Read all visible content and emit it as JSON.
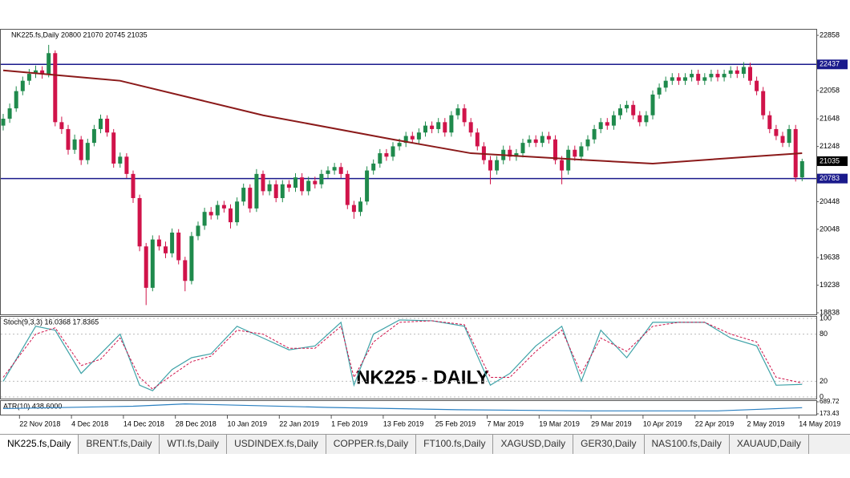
{
  "chart_data": {
    "type": "candlestick",
    "header": "NK225.fs,Daily  20800 21070 20745 21035",
    "overlay_title": "NK225 - DAILY",
    "up_color": "#1f8a4c",
    "down_color": "#d0134a",
    "ma_color": "#8b1a1a",
    "level_color": "#1a1a8c",
    "ylim": [
      18815,
      22940
    ],
    "yticks": [
      22858,
      22058,
      21648,
      21248,
      20448,
      20048,
      19638,
      19238,
      18838
    ],
    "levels": [
      22437,
      20783
    ],
    "current_price": 21035,
    "ohlc": [
      [
        21550,
        21720,
        21480,
        21650
      ],
      [
        21650,
        21870,
        21590,
        21800
      ],
      [
        21800,
        22120,
        21750,
        22050
      ],
      [
        22050,
        22260,
        21990,
        22200
      ],
      [
        22200,
        22370,
        22140,
        22300
      ],
      [
        22300,
        22420,
        22240,
        22350
      ],
      [
        22350,
        22410,
        22230,
        22300
      ],
      [
        22300,
        22720,
        22250,
        22600
      ],
      [
        22600,
        22640,
        21540,
        21600
      ],
      [
        21600,
        21680,
        21430,
        21500
      ],
      [
        21500,
        21560,
        21130,
        21200
      ],
      [
        21200,
        21420,
        21140,
        21350
      ],
      [
        21350,
        21400,
        20980,
        21050
      ],
      [
        21050,
        21360,
        20990,
        21300
      ],
      [
        21300,
        21560,
        21250,
        21500
      ],
      [
        21500,
        21710,
        21440,
        21650
      ],
      [
        21650,
        21700,
        21390,
        21450
      ],
      [
        21450,
        21500,
        20940,
        21000
      ],
      [
        21000,
        21160,
        20940,
        21100
      ],
      [
        21100,
        21150,
        20790,
        20850
      ],
      [
        20850,
        20900,
        20430,
        20500
      ],
      [
        20500,
        20550,
        19730,
        19800
      ],
      [
        19800,
        19850,
        18950,
        19200
      ],
      [
        19200,
        19960,
        19150,
        19900
      ],
      [
        19900,
        19960,
        19740,
        19800
      ],
      [
        19800,
        19870,
        19630,
        19700
      ],
      [
        19700,
        20060,
        19640,
        20000
      ],
      [
        20000,
        20050,
        19540,
        19600
      ],
      [
        19600,
        19650,
        19150,
        19300
      ],
      [
        19300,
        20010,
        19250,
        19950
      ],
      [
        19950,
        20160,
        19890,
        20100
      ],
      [
        20100,
        20360,
        20040,
        20300
      ],
      [
        20300,
        20370,
        20190,
        20250
      ],
      [
        20250,
        20460,
        20190,
        20400
      ],
      [
        20400,
        20460,
        20290,
        20350
      ],
      [
        20350,
        20410,
        20060,
        20150
      ],
      [
        20150,
        20510,
        20100,
        20450
      ],
      [
        20450,
        20710,
        20390,
        20650
      ],
      [
        20650,
        20700,
        20290,
        20350
      ],
      [
        20350,
        20920,
        20300,
        20850
      ],
      [
        20850,
        20900,
        20540,
        20600
      ],
      [
        20600,
        20760,
        20540,
        20700
      ],
      [
        20700,
        20760,
        20440,
        20500
      ],
      [
        20500,
        20760,
        20440,
        20700
      ],
      [
        20700,
        20760,
        20590,
        20650
      ],
      [
        20650,
        20860,
        20590,
        20800
      ],
      [
        20800,
        20860,
        20540,
        20600
      ],
      [
        20600,
        20810,
        20540,
        20750
      ],
      [
        20750,
        20810,
        20640,
        20700
      ],
      [
        20700,
        20910,
        20640,
        20850
      ],
      [
        20850,
        20960,
        20790,
        20900
      ],
      [
        20900,
        21010,
        20840,
        20950
      ],
      [
        20950,
        21010,
        20790,
        20850
      ],
      [
        20850,
        20900,
        20340,
        20400
      ],
      [
        20400,
        20460,
        20200,
        20300
      ],
      [
        20300,
        20510,
        20240,
        20450
      ],
      [
        20450,
        20960,
        20400,
        20900
      ],
      [
        20900,
        21060,
        20840,
        21000
      ],
      [
        21000,
        21210,
        20940,
        21150
      ],
      [
        21150,
        21210,
        21040,
        21100
      ],
      [
        21100,
        21310,
        21040,
        21250
      ],
      [
        21250,
        21360,
        21190,
        21300
      ],
      [
        21300,
        21460,
        21240,
        21400
      ],
      [
        21400,
        21460,
        21290,
        21350
      ],
      [
        21350,
        21510,
        21290,
        21450
      ],
      [
        21450,
        21610,
        21390,
        21550
      ],
      [
        21550,
        21610,
        21440,
        21500
      ],
      [
        21500,
        21660,
        21440,
        21600
      ],
      [
        21600,
        21660,
        21390,
        21450
      ],
      [
        21450,
        21760,
        21390,
        21700
      ],
      [
        21700,
        21860,
        21640,
        21800
      ],
      [
        21800,
        21860,
        21540,
        21600
      ],
      [
        21600,
        21660,
        21390,
        21450
      ],
      [
        21450,
        21510,
        21190,
        21250
      ],
      [
        21250,
        21310,
        20990,
        21050
      ],
      [
        21050,
        21110,
        20700,
        20900
      ],
      [
        20900,
        21110,
        20840,
        21050
      ],
      [
        21050,
        21260,
        20990,
        21200
      ],
      [
        21200,
        21260,
        21040,
        21100
      ],
      [
        21100,
        21210,
        21040,
        21150
      ],
      [
        21150,
        21360,
        21090,
        21300
      ],
      [
        21300,
        21410,
        21240,
        21350
      ],
      [
        21350,
        21410,
        21240,
        21300
      ],
      [
        21300,
        21460,
        21240,
        21400
      ],
      [
        21400,
        21460,
        21290,
        21350
      ],
      [
        21350,
        21410,
        20990,
        21050
      ],
      [
        21050,
        21110,
        20700,
        20900
      ],
      [
        20900,
        21260,
        20840,
        21200
      ],
      [
        21200,
        21260,
        21040,
        21100
      ],
      [
        21100,
        21310,
        21040,
        21250
      ],
      [
        21250,
        21410,
        21190,
        21350
      ],
      [
        21350,
        21560,
        21290,
        21500
      ],
      [
        21500,
        21660,
        21440,
        21600
      ],
      [
        21600,
        21660,
        21490,
        21550
      ],
      [
        21550,
        21760,
        21490,
        21700
      ],
      [
        21700,
        21860,
        21640,
        21800
      ],
      [
        21800,
        21910,
        21740,
        21850
      ],
      [
        21850,
        21910,
        21640,
        21700
      ],
      [
        21700,
        21760,
        21540,
        21600
      ],
      [
        21600,
        21760,
        21540,
        21700
      ],
      [
        21700,
        22060,
        21640,
        22000
      ],
      [
        22000,
        22160,
        21940,
        22100
      ],
      [
        22100,
        22260,
        22040,
        22200
      ],
      [
        22200,
        22310,
        22140,
        22250
      ],
      [
        22250,
        22310,
        22140,
        22200
      ],
      [
        22200,
        22310,
        22140,
        22250
      ],
      [
        22250,
        22360,
        22190,
        22300
      ],
      [
        22300,
        22360,
        22140,
        22200
      ],
      [
        22200,
        22310,
        22140,
        22250
      ],
      [
        22250,
        22360,
        22190,
        22300
      ],
      [
        22300,
        22360,
        22190,
        22250
      ],
      [
        22250,
        22360,
        22190,
        22300
      ],
      [
        22300,
        22410,
        22240,
        22350
      ],
      [
        22350,
        22410,
        22240,
        22300
      ],
      [
        22300,
        22470,
        22240,
        22400
      ],
      [
        22400,
        22460,
        22140,
        22200
      ],
      [
        22200,
        22260,
        21990,
        22050
      ],
      [
        22050,
        22110,
        21640,
        21700
      ],
      [
        21700,
        21760,
        21440,
        21500
      ],
      [
        21500,
        21560,
        21340,
        21400
      ],
      [
        21400,
        21460,
        21240,
        21300
      ],
      [
        21300,
        21560,
        21240,
        21500
      ],
      [
        21500,
        21560,
        20740,
        20800
      ],
      [
        20800,
        21070,
        20745,
        21035
      ]
    ],
    "categories": [
      null,
      null,
      null,
      "22 Nov 2018",
      null,
      null,
      null,
      null,
      null,
      null,
      null,
      "4 Dec 2018",
      null,
      null,
      null,
      null,
      null,
      null,
      null,
      "14 Dec 2018",
      null,
      null,
      null,
      null,
      null,
      null,
      null,
      "28 Dec 2018",
      null,
      null,
      null,
      null,
      null,
      null,
      null,
      "10 Jan 2019",
      null,
      null,
      null,
      null,
      null,
      null,
      null,
      "22 Jan 2019",
      null,
      null,
      null,
      null,
      null,
      null,
      null,
      "1 Feb 2019",
      null,
      null,
      null,
      null,
      null,
      null,
      null,
      "13 Feb 2019",
      null,
      null,
      null,
      null,
      null,
      null,
      null,
      "25 Feb 2019",
      null,
      null,
      null,
      null,
      null,
      null,
      null,
      "7 Mar 2019",
      null,
      null,
      null,
      null,
      null,
      null,
      null,
      "19 Mar 2019",
      null,
      null,
      null,
      null,
      null,
      null,
      null,
      "29 Mar 2019",
      null,
      null,
      null,
      null,
      null,
      null,
      null,
      "10 Apr 2019",
      null,
      null,
      null,
      null,
      null,
      null,
      null,
      "22 Apr 2019",
      null,
      null,
      null,
      null,
      null,
      null,
      null,
      "2 May 2019",
      null,
      null,
      null,
      null,
      null,
      null,
      null,
      "14 May 2019"
    ],
    "ma": {
      "x": [
        0,
        18,
        40,
        60,
        72,
        90,
        100,
        115,
        123
      ],
      "values": [
        22350,
        22200,
        21700,
        21350,
        21150,
        21050,
        21000,
        21100,
        21150
      ]
    },
    "stoch": {
      "label": "Stoch(9,3,3) 16.0368 17.8365",
      "ylim": [
        0,
        100
      ],
      "yticks": [
        0,
        20,
        80,
        100
      ],
      "x": [
        0,
        5,
        8,
        12,
        15,
        18,
        21,
        23,
        26,
        29,
        32,
        36,
        40,
        44,
        48,
        52,
        54,
        57,
        61,
        66,
        71,
        75,
        78,
        82,
        86,
        89,
        92,
        96,
        100,
        104,
        108,
        112,
        116,
        119,
        123
      ],
      "main": [
        20,
        90,
        85,
        30,
        55,
        80,
        15,
        8,
        35,
        50,
        55,
        90,
        75,
        60,
        65,
        95,
        15,
        80,
        98,
        97,
        90,
        15,
        30,
        65,
        90,
        20,
        85,
        50,
        95,
        95,
        95,
        75,
        65,
        15,
        16.0368
      ],
      "signal": [
        25,
        80,
        88,
        40,
        48,
        75,
        25,
        10,
        28,
        45,
        52,
        85,
        80,
        62,
        62,
        90,
        25,
        70,
        95,
        97,
        92,
        25,
        25,
        58,
        85,
        30,
        75,
        58,
        90,
        95,
        95,
        80,
        70,
        25,
        17.8365
      ]
    },
    "atr": {
      "label": "ATR(10) 438.6000",
      "ylim": [
        173.43,
        689.72
      ],
      "yticks": [
        173.43,
        689.72
      ],
      "x": [
        0,
        20,
        28,
        50,
        70,
        90,
        110,
        123
      ],
      "values": [
        400,
        500,
        600,
        450,
        350,
        300,
        300,
        438.6
      ]
    },
    "tabs": [
      "NK225.fs,Daily",
      "BRENT.fs,Daily",
      "WTI.fs,Daily",
      "USDINDEX.fs,Daily",
      "COPPER.fs,Daily",
      "FT100.fs,Daily",
      "XAGUSD,Daily",
      "GER30,Daily",
      "NAS100.fs,Daily",
      "XAUAUD,Daily"
    ]
  }
}
